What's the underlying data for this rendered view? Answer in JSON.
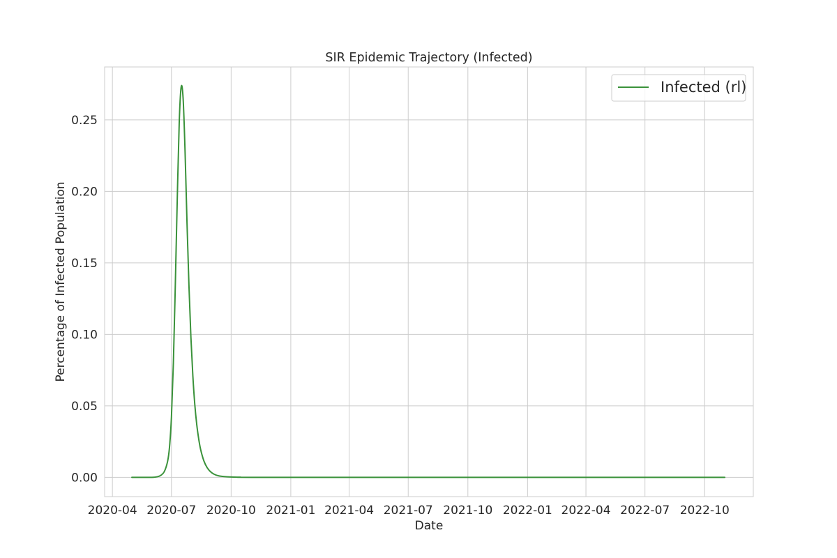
{
  "chart_data": {
    "type": "line",
    "title": "SIR Epidemic Trajectory (Infected)",
    "xlabel": "Date",
    "ylabel": "Percentage of Infected Population",
    "x_type": "date",
    "xlim": [
      "2020-03-20",
      "2022-12-15"
    ],
    "ylim": [
      -0.0135,
      0.287
    ],
    "x_ticks": [
      "2020-04",
      "2020-07",
      "2020-10",
      "2021-01",
      "2021-04",
      "2021-07",
      "2021-10",
      "2022-01",
      "2022-04",
      "2022-07",
      "2022-10"
    ],
    "y_ticks": [
      "0.00",
      "0.05",
      "0.10",
      "0.15",
      "0.20",
      "0.25"
    ],
    "grid": true,
    "legend_position": "top-right",
    "series": [
      {
        "name": "Infected (rl)",
        "color": "#3a923a",
        "x": [
          "2020-05-01",
          "2020-06-01",
          "2020-06-10",
          "2020-06-15",
          "2020-06-20",
          "2020-06-25",
          "2020-06-28",
          "2020-07-01",
          "2020-07-04",
          "2020-07-07",
          "2020-07-10",
          "2020-07-13",
          "2020-07-16",
          "2020-07-19",
          "2020-07-22",
          "2020-07-25",
          "2020-07-28",
          "2020-07-31",
          "2020-08-03",
          "2020-08-06",
          "2020-08-09",
          "2020-08-12",
          "2020-08-15",
          "2020-08-20",
          "2020-08-25",
          "2020-08-30",
          "2020-09-05",
          "2020-09-12",
          "2020-09-20",
          "2020-10-01",
          "2020-10-15",
          "2020-11-01",
          "2021-06-01",
          "2022-11-01"
        ],
        "y": [
          0.0,
          0.0,
          0.0005,
          0.0015,
          0.004,
          0.011,
          0.021,
          0.042,
          0.08,
          0.135,
          0.195,
          0.248,
          0.273,
          0.265,
          0.228,
          0.178,
          0.134,
          0.098,
          0.071,
          0.051,
          0.037,
          0.027,
          0.0195,
          0.0115,
          0.0068,
          0.004,
          0.0021,
          0.001,
          0.0005,
          0.0002,
          0.0001,
          0.0,
          0.0,
          0.0
        ]
      }
    ]
  }
}
